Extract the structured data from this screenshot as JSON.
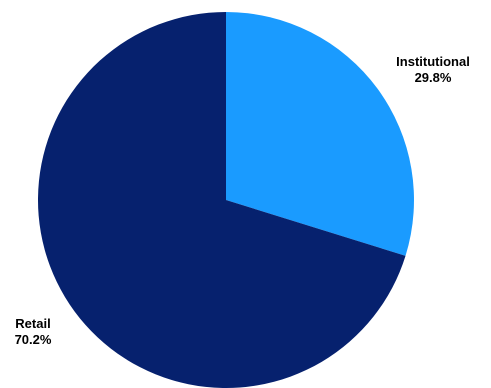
{
  "chart_data": {
    "type": "pie",
    "title": "",
    "slices": [
      {
        "label": "Institutional",
        "value": 29.8,
        "value_label": "29.8%",
        "color": "#1a9bff"
      },
      {
        "label": "Retail",
        "value": 70.2,
        "value_label": "70.2%",
        "color": "#06216e"
      }
    ],
    "start_angle_deg": 0,
    "direction": "clockwise",
    "legend": "none"
  }
}
